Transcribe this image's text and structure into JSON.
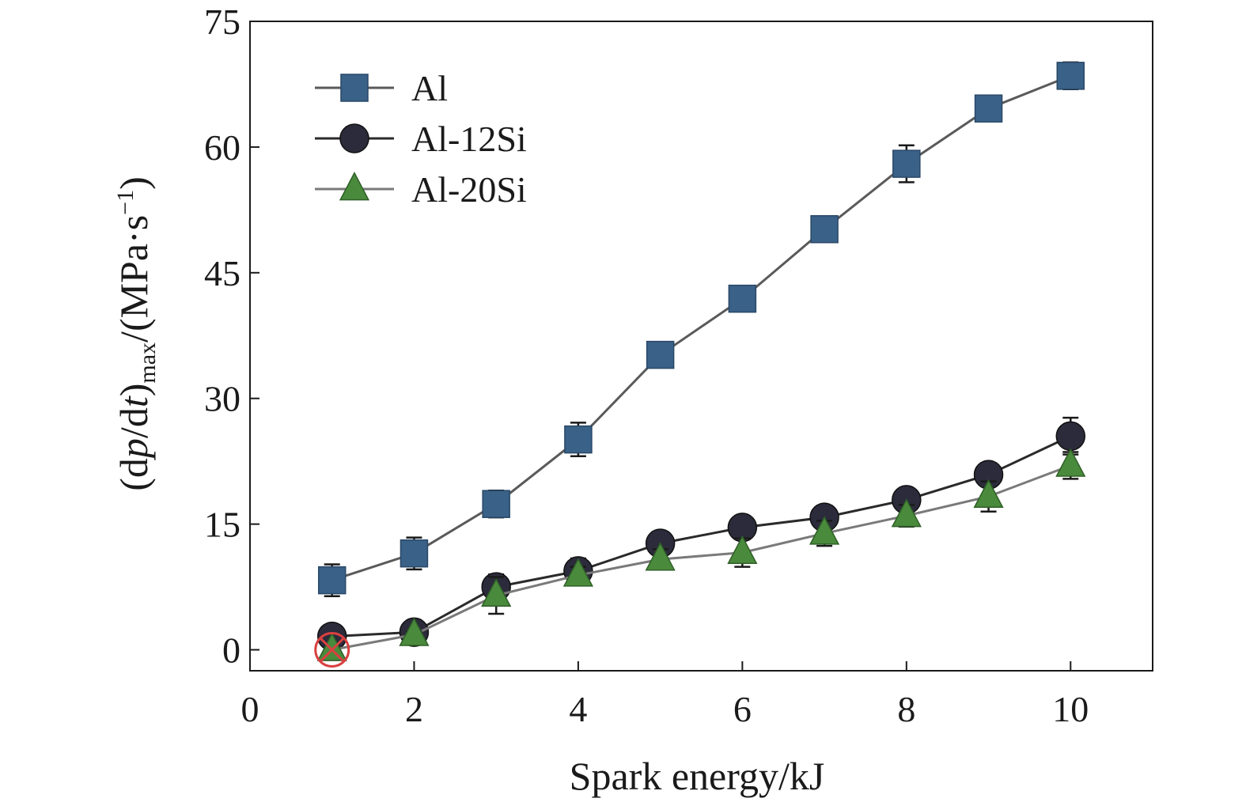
{
  "chart_data": {
    "type": "line",
    "xlabel": "Spark energy/kJ",
    "ylabel": {
      "prefix": "(d",
      "p": "p",
      "slash": "/d",
      "t": "t",
      "close": ")",
      "sub": "max",
      "units": "/(MPa·s",
      "sup": "−1",
      "end": ")"
    },
    "xlim": [
      0,
      11
    ],
    "ylim": [
      -2.5,
      75
    ],
    "xticks": [
      "0",
      "2",
      "4",
      "6",
      "8",
      "10"
    ],
    "yticks": [
      "0",
      "15",
      "30",
      "45",
      "60",
      "75"
    ],
    "grid": false,
    "legend_position": "top-left",
    "series": [
      {
        "name": "Al",
        "marker": "square",
        "color": "#3a6187",
        "line_color": "#5a5a5a",
        "x": [
          1,
          2,
          3,
          4,
          5,
          6,
          7,
          8,
          9,
          10
        ],
        "y": [
          8.3,
          11.5,
          17.4,
          25.1,
          35.2,
          41.9,
          50.2,
          58.0,
          64.6,
          68.5
        ],
        "err": [
          1.9,
          1.9,
          1.6,
          2.0,
          1.4,
          1.3,
          1.3,
          2.2,
          1.4,
          1.6
        ]
      },
      {
        "name": "Al-12Si",
        "marker": "circle",
        "color": "#2b2b3b",
        "line_color": "#2a2a2a",
        "x": [
          1,
          2,
          3,
          4,
          5,
          6,
          7,
          8,
          9,
          10
        ],
        "y": [
          1.6,
          2.1,
          7.5,
          9.4,
          12.7,
          14.6,
          15.8,
          17.9,
          20.9,
          25.5
        ],
        "err": [
          0.5,
          0.5,
          1.5,
          1.5,
          1.4,
          1.3,
          1.3,
          1.3,
          1.3,
          2.2
        ]
      },
      {
        "name": "Al-20Si",
        "marker": "triangle",
        "color": "#4a8a3c",
        "line_color": "#7a7a7a",
        "x": [
          1,
          2,
          3,
          4,
          5,
          6,
          7,
          8,
          9,
          10
        ],
        "y": [
          0.0,
          1.8,
          6.5,
          8.9,
          10.8,
          11.6,
          13.9,
          16.0,
          18.3,
          22.0
        ],
        "err": [
          0.4,
          0.4,
          2.2,
          1.0,
          1.2,
          1.7,
          1.5,
          1.3,
          1.8,
          1.6
        ]
      }
    ],
    "annotation": {
      "type": "crossed-circle",
      "x": 1,
      "y": 0.0,
      "color": "#d94040"
    }
  }
}
